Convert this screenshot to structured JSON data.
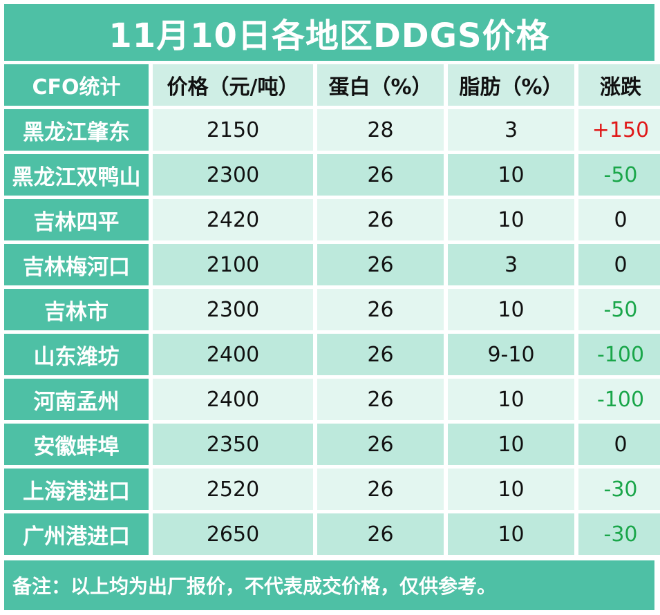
{
  "title": "11月10日各地区DDGS价格",
  "headers": [
    "CFO统计",
    "价格（元/吨）",
    "蛋白（%）",
    "脂肪（%）",
    "涨跌"
  ],
  "rows": [
    {
      "region": "黑龙江肇东",
      "price": "2150",
      "protein": "28",
      "fat": "3",
      "change": "+150",
      "trend": "up"
    },
    {
      "region": "黑龙江双鸭山",
      "price": "2300",
      "protein": "26",
      "fat": "10",
      "change": "-50",
      "trend": "down"
    },
    {
      "region": "吉林四平",
      "price": "2420",
      "protein": "26",
      "fat": "10",
      "change": "0",
      "trend": "flat"
    },
    {
      "region": "吉林梅河口",
      "price": "2100",
      "protein": "26",
      "fat": "3",
      "change": "0",
      "trend": "flat"
    },
    {
      "region": "吉林市",
      "price": "2300",
      "protein": "26",
      "fat": "10",
      "change": "-50",
      "trend": "down"
    },
    {
      "region": "山东潍坊",
      "price": "2400",
      "protein": "26",
      "fat": "9-10",
      "change": "-100",
      "trend": "down"
    },
    {
      "region": "河南孟州",
      "price": "2400",
      "protein": "26",
      "fat": "10",
      "change": "-100",
      "trend": "down"
    },
    {
      "region": "安徽蚌埠",
      "price": "2350",
      "protein": "26",
      "fat": "10",
      "change": "0",
      "trend": "flat"
    },
    {
      "region": "上海港进口",
      "price": "2520",
      "protein": "26",
      "fat": "10",
      "change": "-30",
      "trend": "down"
    },
    {
      "region": "广州港进口",
      "price": "2650",
      "protein": "26",
      "fat": "10",
      "change": "-30",
      "trend": "down"
    }
  ],
  "note": "备注：以上均为出厂报价，不代表成交价格，仅供参考。",
  "colors": {
    "accent": "#4ec0a5",
    "up": "#e01818",
    "down": "#1aa64a",
    "row_light": "#e3f6f0",
    "row_dark": "#bde9dc"
  }
}
